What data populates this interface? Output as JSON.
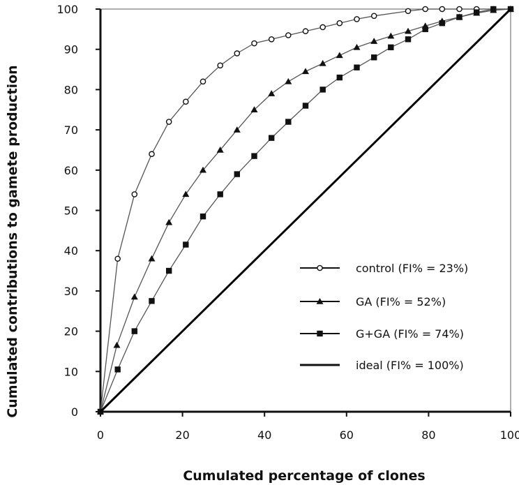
{
  "chart_data": {
    "type": "line",
    "title": "",
    "xlabel": "Cumulated percentage of clones",
    "ylabel": "Cumulated contributions to gamete production",
    "xlim": [
      0,
      100
    ],
    "ylim": [
      0,
      100
    ],
    "xticks": [
      "0",
      "20",
      "40",
      "60",
      "80",
      "100"
    ],
    "yticks": [
      "0",
      "10",
      "20",
      "30",
      "40",
      "50",
      "60",
      "70",
      "80",
      "90",
      "100"
    ],
    "grid": false,
    "legend_position": "bottom-right",
    "series": [
      {
        "name": "control (FI% = 23%)",
        "marker": "open-circle",
        "line_color": "#555555",
        "points": [
          [
            0,
            0
          ],
          [
            4.2,
            38
          ],
          [
            8.3,
            54
          ],
          [
            12.5,
            64
          ],
          [
            16.7,
            72
          ],
          [
            20.8,
            77
          ],
          [
            25,
            82
          ],
          [
            29.2,
            86
          ],
          [
            33.3,
            89
          ],
          [
            37.5,
            91.5
          ],
          [
            41.7,
            92.5
          ],
          [
            45.8,
            93.5
          ],
          [
            50,
            94.5
          ],
          [
            54.2,
            95.5
          ],
          [
            58.3,
            96.5
          ],
          [
            62.5,
            97.5
          ],
          [
            66.7,
            98.3
          ],
          [
            75,
            99.5
          ],
          [
            79.2,
            100
          ],
          [
            83.3,
            100
          ],
          [
            87.5,
            100
          ],
          [
            91.7,
            100
          ],
          [
            95.8,
            100
          ],
          [
            100,
            100
          ]
        ]
      },
      {
        "name": "GA (FI% = 52%)",
        "marker": "triangle",
        "line_color": "#555555",
        "points": [
          [
            0,
            0
          ],
          [
            4,
            16.5
          ],
          [
            8.3,
            28.5
          ],
          [
            12.5,
            38
          ],
          [
            16.7,
            47
          ],
          [
            20.8,
            54
          ],
          [
            25,
            60
          ],
          [
            29.2,
            65
          ],
          [
            33.3,
            70
          ],
          [
            37.5,
            75
          ],
          [
            41.7,
            79
          ],
          [
            45.8,
            82
          ],
          [
            50,
            84.5
          ],
          [
            54.2,
            86.5
          ],
          [
            58.3,
            88.5
          ],
          [
            62.5,
            90.5
          ],
          [
            66.7,
            92
          ],
          [
            70.8,
            93.3
          ],
          [
            75,
            94.5
          ],
          [
            79.2,
            95.8
          ],
          [
            83.3,
            97
          ],
          [
            87.5,
            98
          ],
          [
            91.7,
            99
          ],
          [
            95.8,
            99.7
          ],
          [
            100,
            100
          ]
        ]
      },
      {
        "name": "G+GA (FI% = 74%)",
        "marker": "filled-square",
        "line_color": "#555555",
        "points": [
          [
            0,
            0
          ],
          [
            4.2,
            10.5
          ],
          [
            8.3,
            20
          ],
          [
            12.5,
            27.5
          ],
          [
            16.7,
            35
          ],
          [
            20.8,
            41.5
          ],
          [
            25,
            48.5
          ],
          [
            29.2,
            54
          ],
          [
            33.3,
            59
          ],
          [
            37.5,
            63.5
          ],
          [
            41.7,
            68
          ],
          [
            45.8,
            72
          ],
          [
            50,
            76
          ],
          [
            54.2,
            80
          ],
          [
            58.3,
            83
          ],
          [
            62.5,
            85.5
          ],
          [
            66.7,
            88
          ],
          [
            70.8,
            90.5
          ],
          [
            75,
            92.5
          ],
          [
            79.2,
            95
          ],
          [
            83.3,
            96.5
          ],
          [
            87.5,
            98
          ],
          [
            91.7,
            99.2
          ],
          [
            95.8,
            100
          ],
          [
            100,
            100
          ]
        ]
      },
      {
        "name": "ideal (FI% = 100%)",
        "marker": "none",
        "line_color": "#000000",
        "points": [
          [
            0,
            0
          ],
          [
            100,
            100
          ]
        ]
      }
    ]
  }
}
